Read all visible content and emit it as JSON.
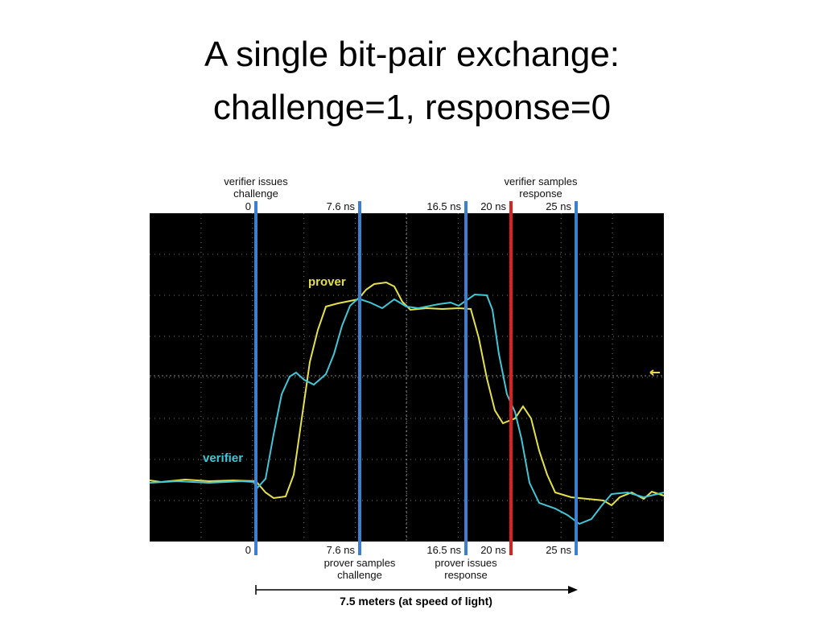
{
  "header": {
    "title_lines": [
      "A single bit-pair exchange:",
      "challenge=1, response=0"
    ]
  },
  "scope": {
    "top_notes": [
      [
        "verifier issues",
        "challenge"
      ],
      [
        "verifier samples",
        "response"
      ]
    ],
    "bottom_notes": [
      [
        "prover samples",
        "challenge"
      ],
      [
        "prover issues",
        "response"
      ]
    ],
    "markers": [
      {
        "top": "0",
        "bottom": "0"
      },
      {
        "top": "7.6 ns",
        "bottom": "7.6 ns"
      },
      {
        "top": "16.5 ns",
        "bottom": "16.5 ns"
      },
      {
        "top": "20 ns",
        "bottom": "20 ns"
      },
      {
        "top": "25 ns",
        "bottom": "25 ns"
      }
    ],
    "trace_labels": {
      "prover": "prover",
      "verifier": "verifier"
    },
    "distance_label": "7.5 meters (at speed of light)"
  }
}
